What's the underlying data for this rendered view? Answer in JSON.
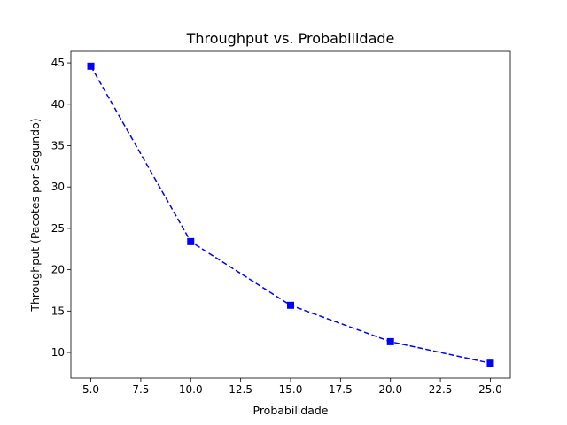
{
  "chart_data": {
    "type": "line",
    "title": "Throughput vs. Probabilidade",
    "xlabel": "Probabilidade",
    "ylabel": "Throughput (Pacotes por Segundo)",
    "x": [
      5,
      10,
      15,
      20,
      25
    ],
    "series": [
      {
        "values": [
          44.6,
          23.4,
          15.7,
          11.3,
          8.7
        ],
        "color": "#0000ff",
        "line_style": "dashed",
        "marker": "square"
      }
    ],
    "xlim": [
      4.0,
      26.0
    ],
    "ylim": [
      6.9,
      46.4
    ],
    "xticks": [
      5.0,
      7.5,
      10.0,
      12.5,
      15.0,
      17.5,
      20.0,
      22.5,
      25.0
    ],
    "xtick_labels": [
      "5.0",
      "7.5",
      "10.0",
      "12.5",
      "15.0",
      "17.5",
      "20.0",
      "22.5",
      "25.0"
    ],
    "yticks": [
      10,
      15,
      20,
      25,
      30,
      35,
      40,
      45
    ],
    "ytick_labels": [
      "10",
      "15",
      "20",
      "25",
      "30",
      "35",
      "40",
      "45"
    ],
    "grid": false,
    "legend": "none"
  }
}
